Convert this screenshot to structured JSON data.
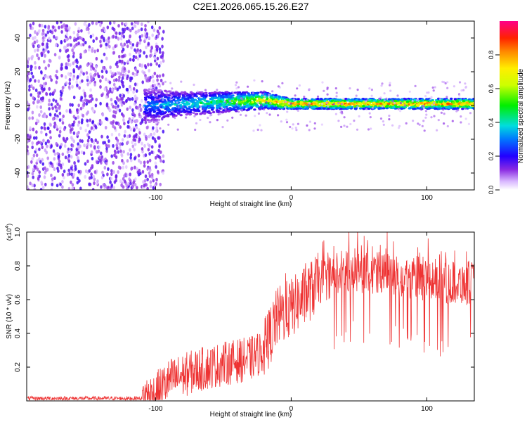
{
  "title": "C2E1.2026.065.15.26.E27",
  "chart_data": [
    {
      "type": "heatmap",
      "xlabel": "Height of straight line (km)",
      "ylabel": "Frequency (Hz)",
      "xlim": [
        -195,
        135
      ],
      "ylim": [
        -50,
        50
      ],
      "xticks": [
        -100,
        0,
        100
      ],
      "xtick_labels": [
        "-100",
        "0",
        "100"
      ],
      "yticks": [
        -40,
        -20,
        0,
        20,
        40
      ],
      "ytick_labels": [
        "-40",
        "-20",
        "0",
        "20",
        "40"
      ],
      "noise_region": {
        "x_from": -195,
        "x_to": -100,
        "amplitude": 0.15
      },
      "signal_band": [
        {
          "x": -105,
          "center_hz": 0,
          "halfwidth_hz": 10,
          "amplitude": 0.35
        },
        {
          "x": -80,
          "center_hz": 1,
          "halfwidth_hz": 7,
          "amplitude": 0.45
        },
        {
          "x": -50,
          "center_hz": 2,
          "halfwidth_hz": 6,
          "amplitude": 0.55
        },
        {
          "x": -20,
          "center_hz": 3,
          "halfwidth_hz": 5,
          "amplitude": 0.8
        },
        {
          "x": 0,
          "center_hz": 1,
          "halfwidth_hz": 3,
          "amplitude": 0.95
        },
        {
          "x": 50,
          "center_hz": 1,
          "halfwidth_hz": 3,
          "amplitude": 0.95
        },
        {
          "x": 100,
          "center_hz": 1,
          "halfwidth_hz": 3,
          "amplitude": 0.95
        },
        {
          "x": 135,
          "center_hz": 1,
          "halfwidth_hz": 3,
          "amplitude": 0.95
        }
      ],
      "colorbar": {
        "label": "Normalized spectral amplitude",
        "range": [
          0,
          1
        ],
        "ticks": [
          0.0,
          0.2,
          0.4,
          0.6,
          0.8
        ],
        "tick_labels": [
          "0.0",
          "0.2",
          "0.4",
          "0.6",
          "0.8"
        ]
      }
    },
    {
      "type": "line",
      "xlabel": "Height of straight line (km)",
      "ylabel": "SNR (10 * v/v)",
      "multiplier_label": "(x10",
      "multiplier_exp": "4",
      "multiplier_close": ")",
      "xlim": [
        -195,
        135
      ],
      "ylim": [
        0,
        1.0
      ],
      "xticks": [
        -100,
        0,
        100
      ],
      "xtick_labels": [
        "-100",
        "0",
        "100"
      ],
      "yticks": [
        0.2,
        0.4,
        0.6,
        0.8,
        1.0
      ],
      "ytick_labels": [
        "0.2",
        "0.4",
        "0.6",
        "0.8",
        "1.0"
      ],
      "series": [
        {
          "name": "SNR",
          "color": "#ee3333",
          "trend_x": [
            -195,
            -110,
            -100,
            -90,
            -70,
            -50,
            -30,
            -20,
            -10,
            0,
            10,
            20,
            40,
            60,
            80,
            100,
            120,
            135
          ],
          "trend_y": [
            0.015,
            0.015,
            0.04,
            0.12,
            0.18,
            0.22,
            0.25,
            0.3,
            0.5,
            0.55,
            0.62,
            0.7,
            0.78,
            0.76,
            0.74,
            0.72,
            0.7,
            0.7
          ]
        }
      ]
    }
  ]
}
